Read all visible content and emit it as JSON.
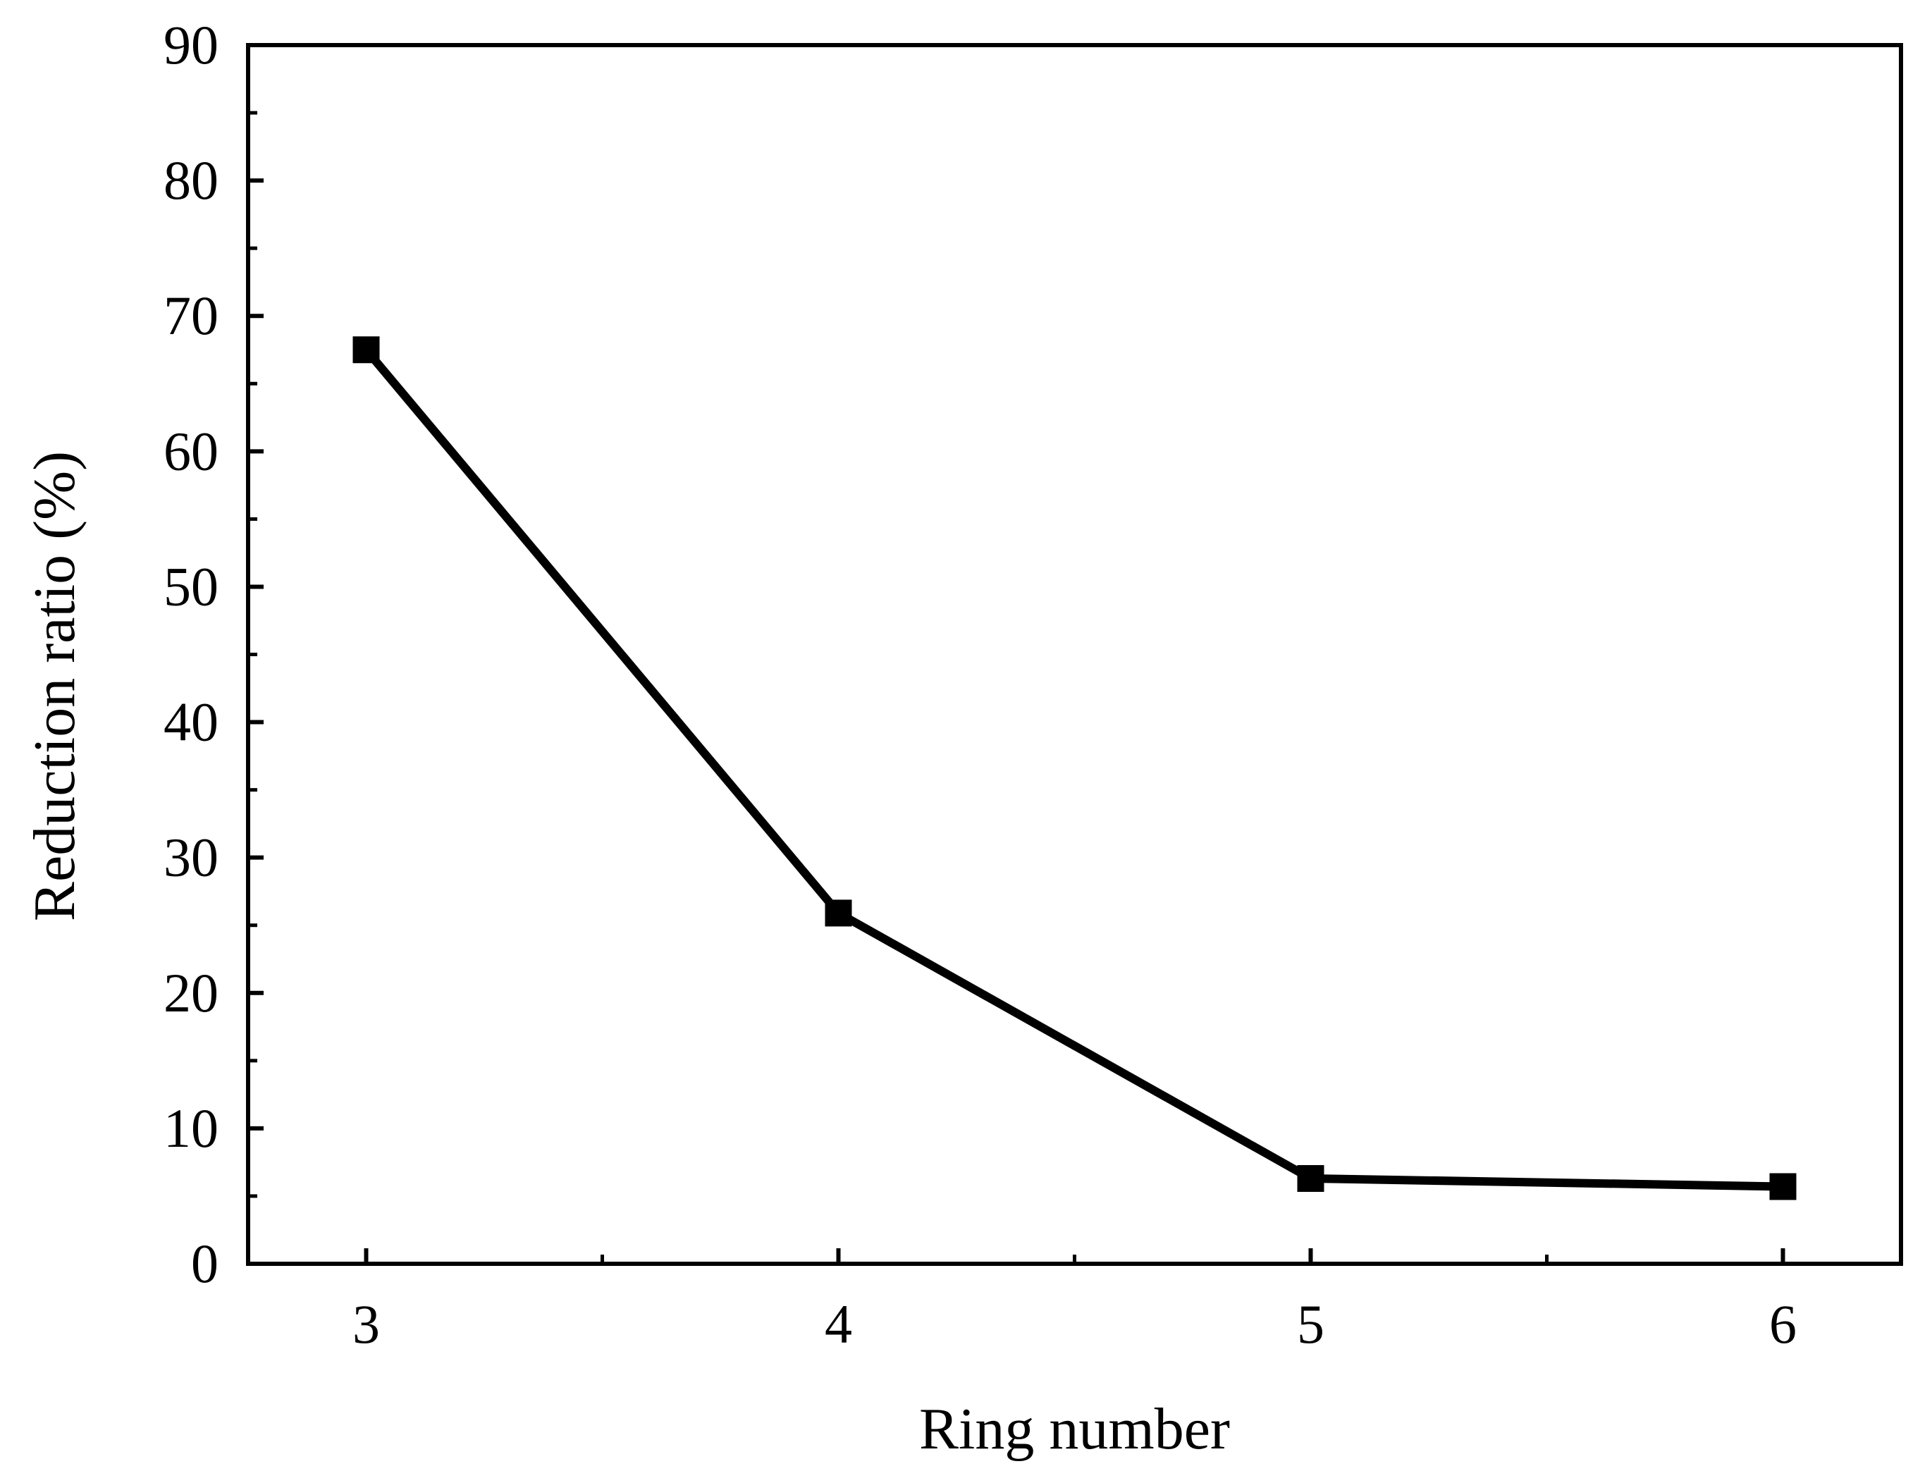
{
  "chart_data": {
    "type": "line",
    "title": "",
    "xlabel": "Ring number",
    "ylabel": "Reduction ratio (%)",
    "x": [
      3,
      4,
      5,
      6
    ],
    "x_ticks": [
      "3",
      "4",
      "5",
      "6"
    ],
    "xlim": [
      2.75,
      6.25
    ],
    "ylim": [
      0,
      90
    ],
    "y_ticks": [
      "0",
      "10",
      "20",
      "30",
      "40",
      "50",
      "60",
      "70",
      "80",
      "90"
    ],
    "series": [
      {
        "values": [
          67.5,
          25.9,
          6.3,
          5.7
        ],
        "marker": "square",
        "color": "#000000"
      }
    ],
    "grid": false,
    "legend": "none"
  }
}
